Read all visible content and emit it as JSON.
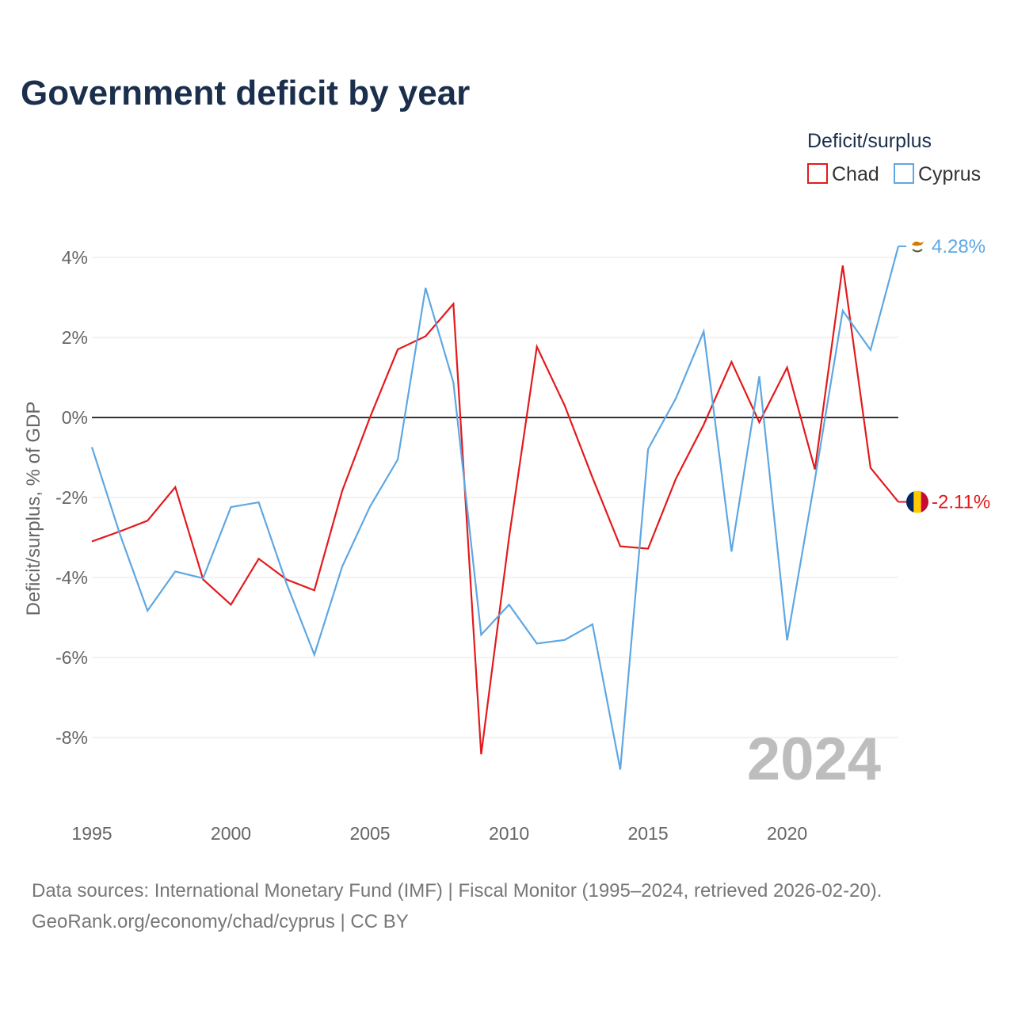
{
  "chart_data": {
    "type": "line",
    "title": "Government deficit by year",
    "ylabel": "Deficit/surplus, % of GDP",
    "xlabel": "",
    "legend_title": "Deficit/surplus",
    "legend_position": "top-right",
    "watermark_year": "2024",
    "xlim": [
      1995,
      2024
    ],
    "ylim": [
      -10,
      4.6
    ],
    "x_ticks": [
      1995,
      2000,
      2005,
      2010,
      2015,
      2020
    ],
    "x_tick_labels": [
      "1995",
      "2000",
      "2005",
      "2010",
      "2015",
      "2020"
    ],
    "y_ticks": [
      4,
      2,
      0,
      -2,
      -4,
      -6,
      -8
    ],
    "y_tick_labels": [
      "4%",
      "2%",
      "0%",
      "-2%",
      "-4%",
      "-6%",
      "-8%"
    ],
    "x": [
      1995,
      1996,
      1997,
      1998,
      1999,
      2000,
      2001,
      2002,
      2003,
      2004,
      2005,
      2006,
      2007,
      2008,
      2009,
      2010,
      2011,
      2012,
      2013,
      2014,
      2015,
      2016,
      2017,
      2018,
      2019,
      2020,
      2021,
      2022,
      2023,
      2024
    ],
    "series": [
      {
        "name": "Chad",
        "color": "#e31a1c",
        "end_label": "-2.11%",
        "flag": "chad-flag",
        "values": [
          -3.1,
          -2.85,
          -2.58,
          -1.74,
          -4.05,
          -4.68,
          -3.53,
          -4.05,
          -4.32,
          -1.84,
          0.0,
          1.7,
          2.03,
          2.84,
          -8.42,
          -3.0,
          1.77,
          0.3,
          -1.5,
          -3.22,
          -3.28,
          -1.53,
          -0.18,
          1.39,
          -0.12,
          1.25,
          -1.3,
          3.8,
          -1.26,
          -2.11
        ]
      },
      {
        "name": "Cyprus",
        "color": "#5ea7e3",
        "end_label": "4.28%",
        "flag": "cyprus-flag",
        "values": [
          -0.74,
          -2.9,
          -4.83,
          -3.85,
          -4.02,
          -2.24,
          -2.12,
          -4.15,
          -5.93,
          -3.73,
          -2.23,
          -1.05,
          3.24,
          0.88,
          -5.43,
          -4.68,
          -5.65,
          -5.56,
          -5.17,
          -8.8,
          -0.79,
          0.48,
          2.15,
          -3.35,
          1.03,
          -5.57,
          -1.55,
          2.67,
          1.69,
          4.28
        ]
      }
    ]
  },
  "footer": {
    "line1": "Data sources: International Monetary Fund (IMF) | Fiscal Monitor (1995–2024, retrieved 2026-02-20).",
    "line2": "GeoRank.org/economy/chad/cyprus | CC BY"
  }
}
